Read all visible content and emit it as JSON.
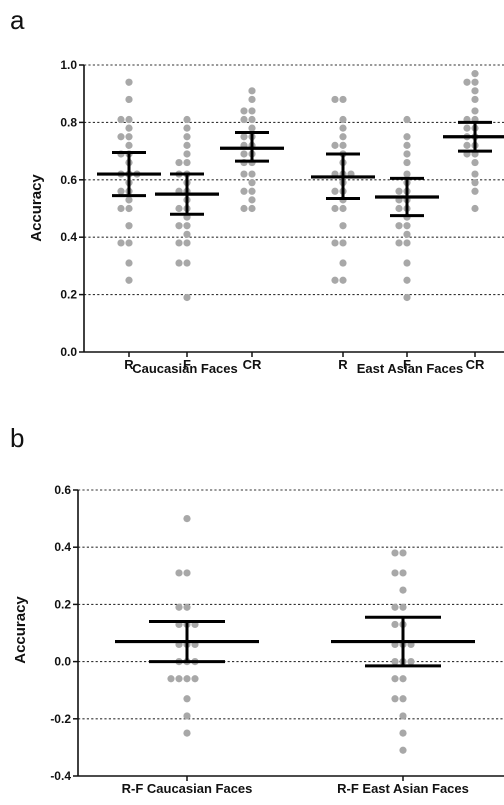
{
  "chart_data": [
    {
      "panel_label": "a",
      "type": "scatter",
      "ylabel": "Accuracy",
      "ylim": [
        0.0,
        1.0
      ],
      "yticks": [
        "0.0",
        "0.2",
        "0.4",
        "0.6",
        "0.8",
        "1.0"
      ],
      "ytick_values": [
        0.0,
        0.2,
        0.4,
        0.6,
        0.8,
        1.0
      ],
      "grid": "horizontal dotted",
      "point_color": "#a8a8a8",
      "error_color": "#000000",
      "groups": [
        {
          "label": "Caucasian Faces",
          "categories": [
            {
              "label": "R",
              "mean": 0.62,
              "lower": 0.545,
              "upper": 0.695,
              "points": [
                0.94,
                0.88,
                0.81,
                0.81,
                0.78,
                0.75,
                0.75,
                0.72,
                0.69,
                0.69,
                0.66,
                0.62,
                0.62,
                0.62,
                0.59,
                0.56,
                0.56,
                0.53,
                0.5,
                0.5,
                0.44,
                0.38,
                0.38,
                0.31,
                0.25
              ]
            },
            {
              "label": "F",
              "mean": 0.55,
              "lower": 0.48,
              "upper": 0.62,
              "points": [
                0.81,
                0.78,
                0.75,
                0.72,
                0.69,
                0.66,
                0.66,
                0.62,
                0.62,
                0.59,
                0.56,
                0.56,
                0.53,
                0.5,
                0.5,
                0.47,
                0.44,
                0.44,
                0.41,
                0.38,
                0.38,
                0.31,
                0.31,
                0.19
              ]
            },
            {
              "label": "CR",
              "mean": 0.71,
              "lower": 0.665,
              "upper": 0.765,
              "points": [
                0.91,
                0.88,
                0.84,
                0.84,
                0.81,
                0.81,
                0.78,
                0.75,
                0.75,
                0.72,
                0.72,
                0.69,
                0.69,
                0.66,
                0.66,
                0.62,
                0.62,
                0.59,
                0.56,
                0.56,
                0.53,
                0.5,
                0.5
              ]
            }
          ]
        },
        {
          "label": "East Asian Faces",
          "categories": [
            {
              "label": "R",
              "mean": 0.61,
              "lower": 0.535,
              "upper": 0.69,
              "points": [
                0.88,
                0.88,
                0.81,
                0.78,
                0.75,
                0.72,
                0.72,
                0.69,
                0.66,
                0.62,
                0.62,
                0.62,
                0.59,
                0.56,
                0.56,
                0.53,
                0.5,
                0.5,
                0.44,
                0.38,
                0.38,
                0.31,
                0.25,
                0.25
              ]
            },
            {
              "label": "F",
              "mean": 0.54,
              "lower": 0.475,
              "upper": 0.605,
              "points": [
                0.81,
                0.75,
                0.72,
                0.69,
                0.66,
                0.62,
                0.59,
                0.56,
                0.56,
                0.53,
                0.53,
                0.5,
                0.5,
                0.47,
                0.44,
                0.44,
                0.41,
                0.38,
                0.38,
                0.31,
                0.25,
                0.19
              ]
            },
            {
              "label": "CR",
              "mean": 0.75,
              "lower": 0.7,
              "upper": 0.8,
              "points": [
                0.97,
                0.94,
                0.94,
                0.91,
                0.88,
                0.84,
                0.81,
                0.81,
                0.78,
                0.78,
                0.75,
                0.75,
                0.72,
                0.72,
                0.69,
                0.69,
                0.66,
                0.62,
                0.59,
                0.56,
                0.5
              ]
            }
          ]
        }
      ]
    },
    {
      "panel_label": "b",
      "type": "scatter",
      "ylabel": "Accuracy",
      "ylim": [
        -0.4,
        0.6
      ],
      "yticks": [
        "-0.4",
        "-0.2",
        "0.0",
        "0.2",
        "0.4",
        "0.6"
      ],
      "ytick_values": [
        -0.4,
        -0.2,
        0.0,
        0.2,
        0.4,
        0.6
      ],
      "grid": "horizontal dotted",
      "point_color": "#a8a8a8",
      "error_color": "#000000",
      "categories": [
        {
          "label": "R-F Caucasian Faces",
          "mean": 0.07,
          "lower": 0.0,
          "upper": 0.14,
          "points": [
            0.5,
            0.31,
            0.31,
            0.19,
            0.19,
            0.13,
            0.13,
            0.13,
            0.06,
            0.06,
            0.06,
            0.0,
            0.0,
            0.0,
            -0.06,
            -0.06,
            -0.06,
            -0.06,
            -0.13,
            -0.19,
            -0.25
          ]
        },
        {
          "label": "R-F East Asian Faces",
          "mean": 0.07,
          "lower": -0.015,
          "upper": 0.155,
          "points": [
            0.38,
            0.38,
            0.31,
            0.31,
            0.25,
            0.19,
            0.19,
            0.13,
            0.13,
            0.06,
            0.06,
            0.06,
            0.0,
            0.0,
            0.0,
            -0.06,
            -0.06,
            -0.13,
            -0.13,
            -0.19,
            -0.25,
            -0.31
          ]
        }
      ]
    }
  ]
}
